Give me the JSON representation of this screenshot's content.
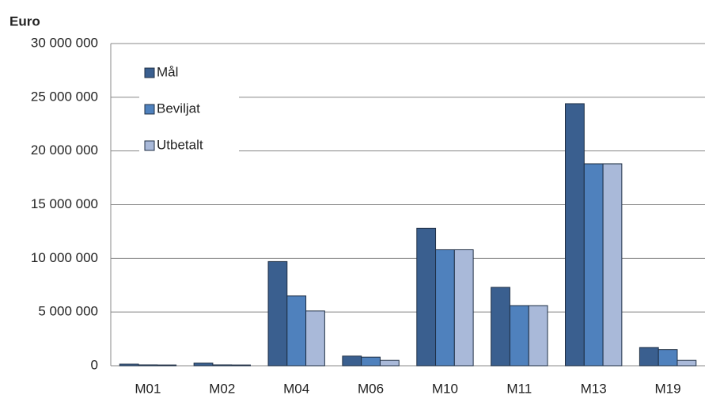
{
  "chart_data": {
    "type": "bar",
    "y_axis_title": "Euro",
    "categories": [
      "M01",
      "M02",
      "M04",
      "M06",
      "M10",
      "M11",
      "M13",
      "M19"
    ],
    "series": [
      {
        "name": "Mål",
        "color": "#3a5f8f",
        "values": [
          150000,
          250000,
          9700000,
          900000,
          12800000,
          7300000,
          24400000,
          1700000
        ]
      },
      {
        "name": "Beviljat",
        "color": "#4f81bd",
        "values": [
          80000,
          80000,
          6500000,
          800000,
          10800000,
          5600000,
          18800000,
          1500000
        ]
      },
      {
        "name": "Utbetalt",
        "color": "#a9b9d9",
        "values": [
          70000,
          70000,
          5100000,
          500000,
          10800000,
          5600000,
          18800000,
          500000
        ]
      }
    ],
    "ylim": [
      0,
      30000000
    ],
    "yticks": [
      0,
      {
        "value": 5000000,
        "label": "5 000 000"
      },
      {
        "value": 10000000,
        "label": "10 000 000"
      },
      {
        "value": 15000000,
        "label": "15 000 000"
      },
      {
        "value": 20000000,
        "label": "20 000 000"
      },
      {
        "value": 25000000,
        "label": "25 000 000"
      },
      {
        "value": 30000000,
        "label": "30 000 000"
      }
    ],
    "grid": true,
    "legend": "top-left"
  }
}
